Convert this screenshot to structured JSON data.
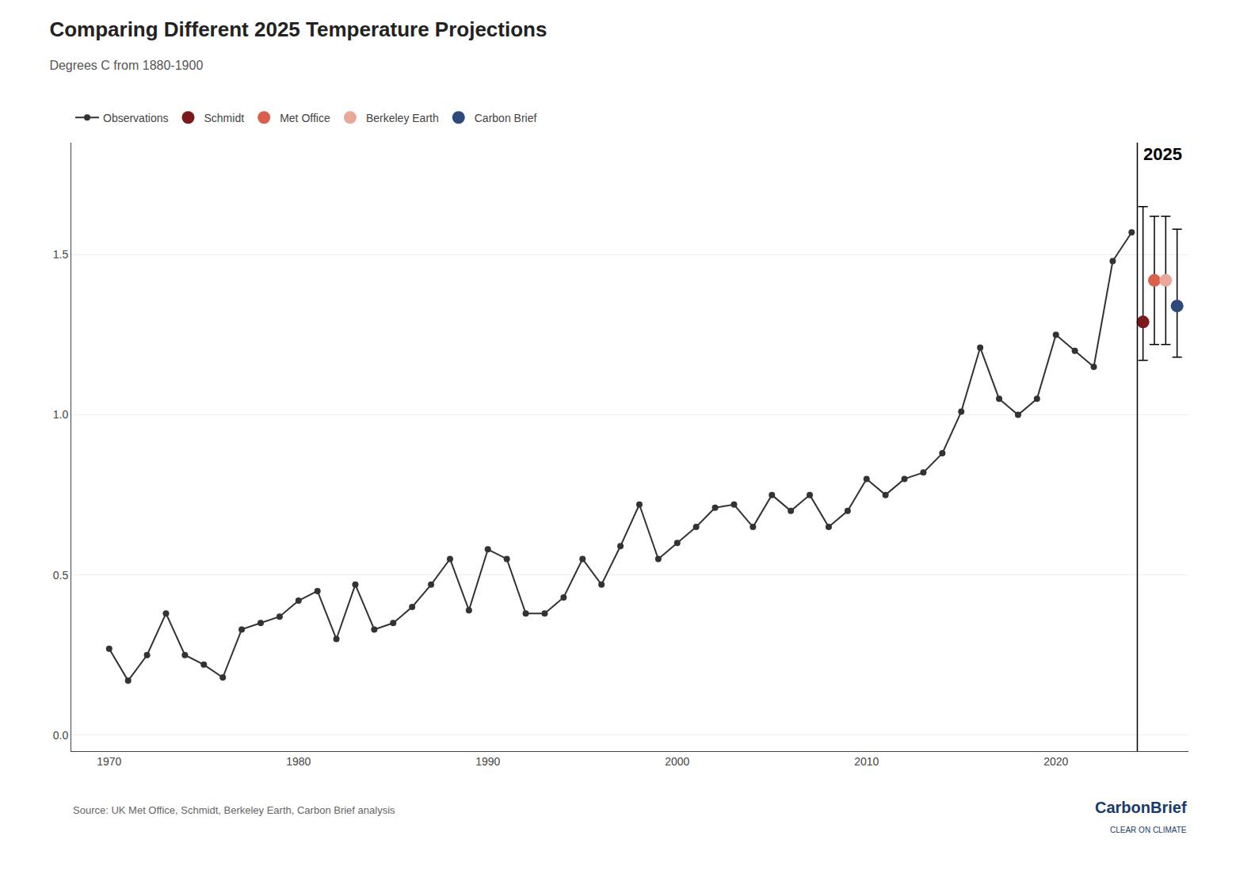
{
  "chart_data": {
    "type": "line",
    "title": "Comparing Different 2025 Temperature Projections",
    "subtitle": "Degrees C from 1880-1900",
    "x": [
      1970,
      1971,
      1972,
      1973,
      1974,
      1975,
      1976,
      1977,
      1978,
      1979,
      1980,
      1981,
      1982,
      1983,
      1984,
      1985,
      1986,
      1987,
      1988,
      1989,
      1990,
      1991,
      1992,
      1993,
      1994,
      1995,
      1996,
      1997,
      1998,
      1999,
      2000,
      2001,
      2002,
      2003,
      2004,
      2005,
      2006,
      2007,
      2008,
      2009,
      2010,
      2011,
      2012,
      2013,
      2014,
      2015,
      2016,
      2017,
      2018,
      2019,
      2020,
      2021,
      2022,
      2023,
      2024
    ],
    "series": [
      {
        "name": "Observations",
        "type": "line",
        "marker": "circle",
        "color": "#333333",
        "values": [
          0.27,
          0.17,
          0.25,
          0.38,
          0.25,
          0.22,
          0.18,
          0.33,
          0.35,
          0.37,
          0.42,
          0.45,
          0.3,
          0.47,
          0.33,
          0.35,
          0.4,
          0.47,
          0.55,
          0.39,
          0.58,
          0.55,
          0.38,
          0.38,
          0.43,
          0.55,
          0.47,
          0.59,
          0.72,
          0.55,
          0.6,
          0.65,
          0.71,
          0.72,
          0.65,
          0.75,
          0.7,
          0.75,
          0.65,
          0.7,
          0.8,
          0.75,
          0.8,
          0.82,
          0.88,
          1.01,
          1.21,
          1.05,
          1.0,
          1.05,
          1.25,
          1.2,
          1.15,
          1.48,
          1.57
        ]
      }
    ],
    "projections": [
      {
        "name": "Schmidt",
        "value": 1.29,
        "low": 1.17,
        "high": 1.65,
        "color": "#7B1A1A"
      },
      {
        "name": "Met Office",
        "value": 1.42,
        "low": 1.22,
        "high": 1.62,
        "color": "#D9604A"
      },
      {
        "name": "Berkeley Earth",
        "value": 1.42,
        "low": 1.22,
        "high": 1.62,
        "color": "#E8A89C"
      },
      {
        "name": "Carbon Brief",
        "value": 1.34,
        "low": 1.18,
        "high": 1.58,
        "color": "#2E4A7A"
      }
    ],
    "vline_label": "2025",
    "source": "Source: UK Met Office, Schmidt, Berkeley Earth, Carbon Brief analysis",
    "logo": "CarbonBrief",
    "logo_subtext": "CLEAR ON CLIMATE",
    "xlim": [
      1968,
      2027
    ],
    "xticks": [
      1970,
      1980,
      1990,
      2000,
      2010,
      2020
    ],
    "ylim": [
      -0.05,
      1.85
    ],
    "yticks": [
      {
        "value": 0.0,
        "label": "0.0"
      },
      {
        "value": 0.5,
        "label": "0.5"
      },
      {
        "value": 1.0,
        "label": "1.0"
      },
      {
        "value": 1.5,
        "label": "1.5"
      }
    ],
    "grid": "y",
    "legend": "top"
  }
}
